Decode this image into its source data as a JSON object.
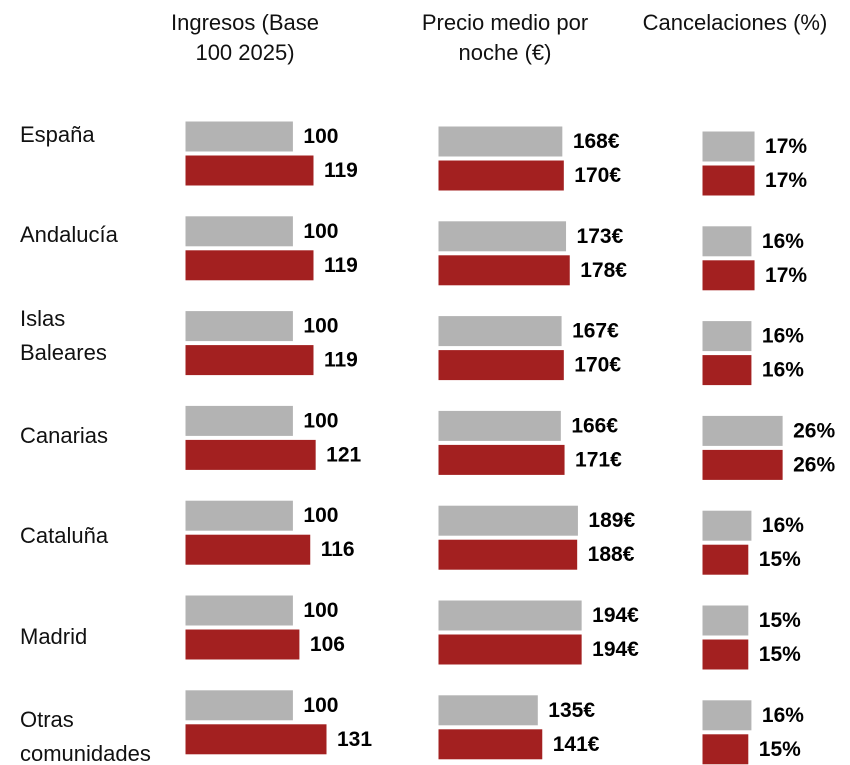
{
  "chart_data": {
    "type": "bar",
    "categories": [
      "España",
      "Andalucía",
      "Islas Baleares",
      "Canarias",
      "Cataluña",
      "Madrid",
      "Otras comunidades"
    ],
    "panels": [
      {
        "title": "Ingresos (Base 100 2025)",
        "series": [
          {
            "color": "#b3b3b3",
            "values": [
              100,
              100,
              100,
              100,
              100,
              100,
              100
            ]
          },
          {
            "color": "#a32020",
            "values": [
              119,
              119,
              119,
              121,
              116,
              106,
              131
            ]
          }
        ]
      },
      {
        "title": "Precio medio por noche (€)",
        "series": [
          {
            "color": "#b3b3b3",
            "values": [
              168,
              173,
              167,
              166,
              189,
              194,
              135
            ],
            "value_labels": [
              "168€",
              "173€",
              "167€",
              "166€",
              "189€",
              "194€",
              "135€"
            ]
          },
          {
            "color": "#a32020",
            "values": [
              170,
              178,
              170,
              171,
              188,
              194,
              141
            ],
            "value_labels": [
              "170€",
              "178€",
              "170€",
              "171€",
              "188€",
              "194€",
              "141€"
            ]
          }
        ]
      },
      {
        "title": "Cancelaciones (%)",
        "series": [
          {
            "color": "#b3b3b3",
            "values": [
              17,
              16,
              16,
              26,
              16,
              15,
              16
            ],
            "value_labels": [
              "17%",
              "16%",
              "16%",
              "26%",
              "16%",
              "15%",
              "16%"
            ]
          },
          {
            "color": "#a32020",
            "values": [
              17,
              17,
              16,
              26,
              15,
              15,
              15
            ],
            "value_labels": [
              "17%",
              "17%",
              "16%",
              "26%",
              "15%",
              "15%",
              "15%"
            ]
          }
        ]
      }
    ]
  }
}
